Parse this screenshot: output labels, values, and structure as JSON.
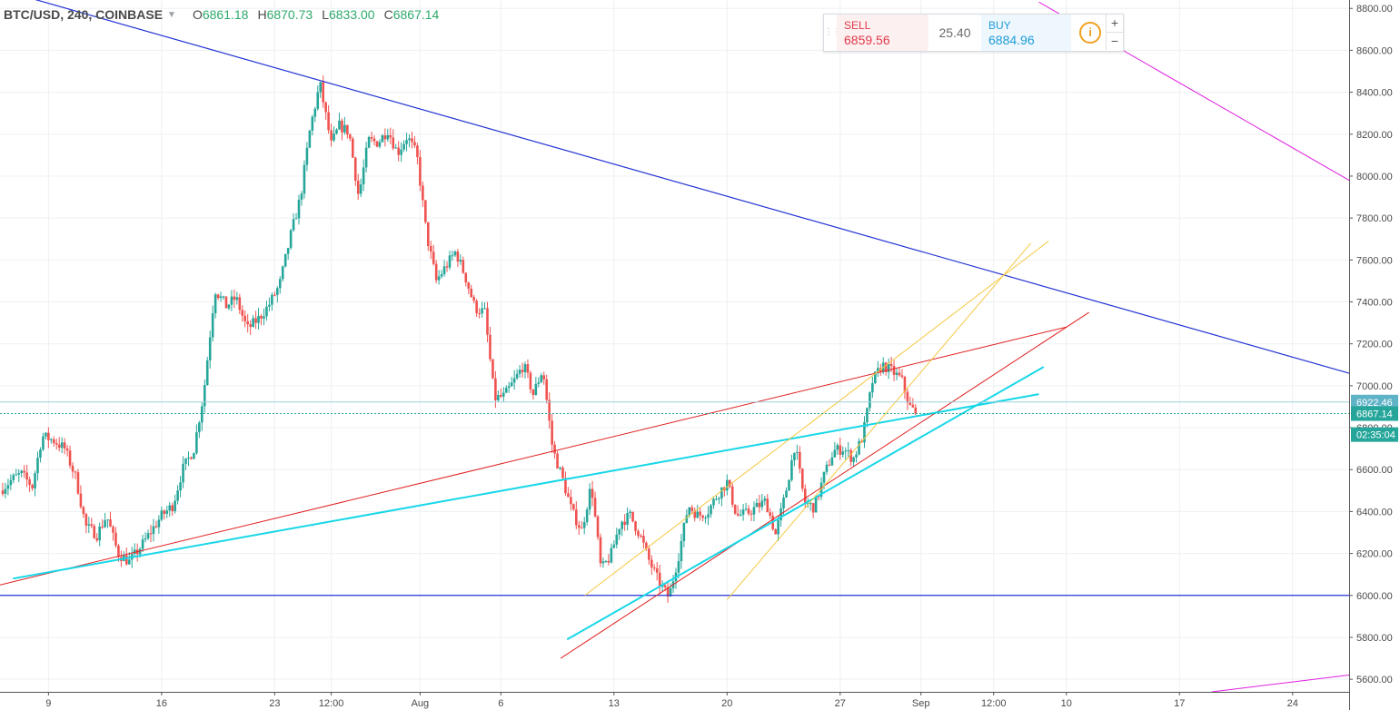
{
  "header": {
    "symbol": "BTC/USD, 240, COINBASE",
    "open_label": "O",
    "open": "6861.18",
    "high_label": "H",
    "high": "6870.73",
    "low_label": "L",
    "low": "6833.00",
    "close_label": "C",
    "close": "6867.14"
  },
  "trade_panel": {
    "sell_label": "SELL",
    "sell_price": "6859.56",
    "spread": "25.40",
    "buy_label": "BUY",
    "buy_price": "6884.96",
    "info_icon": "info-icon",
    "zoom_in": "+",
    "zoom_out": "−"
  },
  "colors": {
    "up": "#26a69a",
    "down": "#ef5350",
    "grid": "#edf0f3",
    "axis_text": "#4a4a4a",
    "price_tag": "#26a69a",
    "level_tag": "#5fb3c7"
  },
  "chart_data": {
    "type": "candlestick",
    "title": "BTC/USD, 240, COINBASE",
    "ylim": [
      5540,
      8840
    ],
    "y_ticks": [
      5600,
      5800,
      6000,
      6200,
      6400,
      6600,
      6800,
      7000,
      7200,
      7400,
      7600,
      7800,
      8000,
      8200,
      8400,
      8600,
      8800
    ],
    "y_tick_labels": [
      "5600.00",
      "5800.00",
      "6000.00",
      "6200.00",
      "6400.00",
      "6600.00",
      "6800.00",
      "7000.00",
      "7200.00",
      "7400.00",
      "7600.00",
      "7800.00",
      "8000.00",
      "8200.00",
      "8400.00",
      "8600.00",
      "8800.00"
    ],
    "x_tick_labels": [
      "9",
      "16",
      "23",
      "12:00",
      "Aug",
      "6",
      "13",
      "20",
      "27",
      "Sep",
      "12:00",
      "10",
      "17",
      "24"
    ],
    "x_tick_days": [
      9,
      16,
      23,
      26.5,
      32,
      37,
      44,
      51,
      58,
      63,
      67.5,
      72,
      79,
      86
    ],
    "xlim_days": [
      6,
      89.5
    ],
    "grid": true,
    "current_price": "6867.14",
    "countdown": "02:35:04",
    "level_price": "6922.46",
    "ohlc": {
      "open": 6861.18,
      "high": 6870.73,
      "low": 6833.0,
      "close": 6867.14
    },
    "close_path": [
      [
        6.0,
        6500
      ],
      [
        6.7,
        6550
      ],
      [
        7.3,
        6580
      ],
      [
        8.0,
        6520
      ],
      [
        8.6,
        6760
      ],
      [
        9.3,
        6740
      ],
      [
        10.0,
        6700
      ],
      [
        10.7,
        6560
      ],
      [
        11.3,
        6330
      ],
      [
        12.0,
        6290
      ],
      [
        12.6,
        6380
      ],
      [
        13.3,
        6200
      ],
      [
        14.0,
        6160
      ],
      [
        14.7,
        6230
      ],
      [
        15.3,
        6300
      ],
      [
        16.0,
        6380
      ],
      [
        16.7,
        6430
      ],
      [
        17.3,
        6600
      ],
      [
        18.0,
        6700
      ],
      [
        18.6,
        6960
      ],
      [
        19.3,
        7460
      ],
      [
        20.0,
        7380
      ],
      [
        20.6,
        7420
      ],
      [
        21.3,
        7270
      ],
      [
        22.0,
        7320
      ],
      [
        22.6,
        7380
      ],
      [
        23.3,
        7480
      ],
      [
        24.0,
        7720
      ],
      [
        24.6,
        7900
      ],
      [
        25.2,
        8230
      ],
      [
        25.8,
        8440
      ],
      [
        26.5,
        8150
      ],
      [
        27.0,
        8240
      ],
      [
        27.6,
        8210
      ],
      [
        28.2,
        7900
      ],
      [
        28.8,
        8170
      ],
      [
        29.4,
        8160
      ],
      [
        30.0,
        8220
      ],
      [
        30.6,
        8110
      ],
      [
        31.2,
        8190
      ],
      [
        31.8,
        8100
      ],
      [
        32.4,
        7720
      ],
      [
        33.0,
        7500
      ],
      [
        33.6,
        7570
      ],
      [
        34.2,
        7640
      ],
      [
        34.8,
        7520
      ],
      [
        35.4,
        7370
      ],
      [
        36.0,
        7350
      ],
      [
        36.6,
        6940
      ],
      [
        37.2,
        6950
      ],
      [
        37.8,
        7020
      ],
      [
        38.4,
        7100
      ],
      [
        39.0,
        6960
      ],
      [
        39.6,
        7080
      ],
      [
        40.2,
        6700
      ],
      [
        40.8,
        6560
      ],
      [
        41.4,
        6400
      ],
      [
        42.0,
        6310
      ],
      [
        42.6,
        6530
      ],
      [
        43.2,
        6120
      ],
      [
        43.8,
        6190
      ],
      [
        44.4,
        6350
      ],
      [
        45.0,
        6380
      ],
      [
        45.6,
        6290
      ],
      [
        46.2,
        6160
      ],
      [
        46.8,
        6060
      ],
      [
        47.4,
        5990
      ],
      [
        48.0,
        6190
      ],
      [
        48.6,
        6430
      ],
      [
        49.2,
        6380
      ],
      [
        49.8,
        6400
      ],
      [
        50.4,
        6480
      ],
      [
        51.0,
        6540
      ],
      [
        51.6,
        6380
      ],
      [
        52.2,
        6390
      ],
      [
        52.8,
        6420
      ],
      [
        53.4,
        6450
      ],
      [
        54.0,
        6290
      ],
      [
        54.6,
        6480
      ],
      [
        55.2,
        6720
      ],
      [
        55.8,
        6440
      ],
      [
        56.4,
        6420
      ],
      [
        57.0,
        6570
      ],
      [
        57.6,
        6690
      ],
      [
        58.2,
        6700
      ],
      [
        58.8,
        6650
      ],
      [
        59.4,
        6760
      ],
      [
        60.0,
        7020
      ],
      [
        60.6,
        7100
      ],
      [
        61.2,
        7070
      ],
      [
        61.8,
        7030
      ],
      [
        62.3,
        6900
      ],
      [
        62.8,
        6867
      ]
    ]
  },
  "drawings": [
    {
      "name": "blue-resistance-line",
      "color": "#2433d4",
      "width": 1.2,
      "p1": [
        6.0,
        8890
      ],
      "p2": [
        89.5,
        7060
      ]
    },
    {
      "name": "blue-support-line",
      "color": "#2433d4",
      "width": 1.2,
      "p1": [
        6.0,
        6000
      ],
      "p2": [
        89.5,
        6000
      ]
    },
    {
      "name": "magenta-upper-line",
      "color": "#e020e0",
      "width": 1.0,
      "p1": [
        70.3,
        8830
      ],
      "p2": [
        89.5,
        7980
      ]
    },
    {
      "name": "magenta-lower-line",
      "color": "#e020e0",
      "width": 1.0,
      "p1": [
        81.0,
        5540
      ],
      "p2": [
        89.5,
        5620
      ]
    },
    {
      "name": "red-wedge-upper",
      "color": "#e02020",
      "width": 1.0,
      "p1": [
        6.0,
        6050
      ],
      "p2": [
        72.0,
        7280
      ]
    },
    {
      "name": "red-wedge-lower",
      "color": "#e02020",
      "width": 1.0,
      "p1": [
        40.7,
        5700
      ],
      "p2": [
        73.4,
        7350
      ]
    },
    {
      "name": "cyan-trend-upper",
      "color": "#17d7e8",
      "width": 2.0,
      "p1": [
        6.8,
        6080
      ],
      "p2": [
        70.3,
        6960
      ]
    },
    {
      "name": "cyan-trend-lower",
      "color": "#17d7e8",
      "width": 2.0,
      "p1": [
        41.1,
        5790
      ],
      "p2": [
        70.6,
        7090
      ]
    },
    {
      "name": "yellow-channel-line-1",
      "color": "#f5c842",
      "width": 1.0,
      "p1": [
        42.2,
        6000
      ],
      "p2": [
        70.9,
        7690
      ]
    },
    {
      "name": "yellow-channel-line-2",
      "color": "#f5c842",
      "width": 1.0,
      "p1": [
        51.0,
        5980
      ],
      "p2": [
        69.8,
        7680
      ]
    }
  ]
}
